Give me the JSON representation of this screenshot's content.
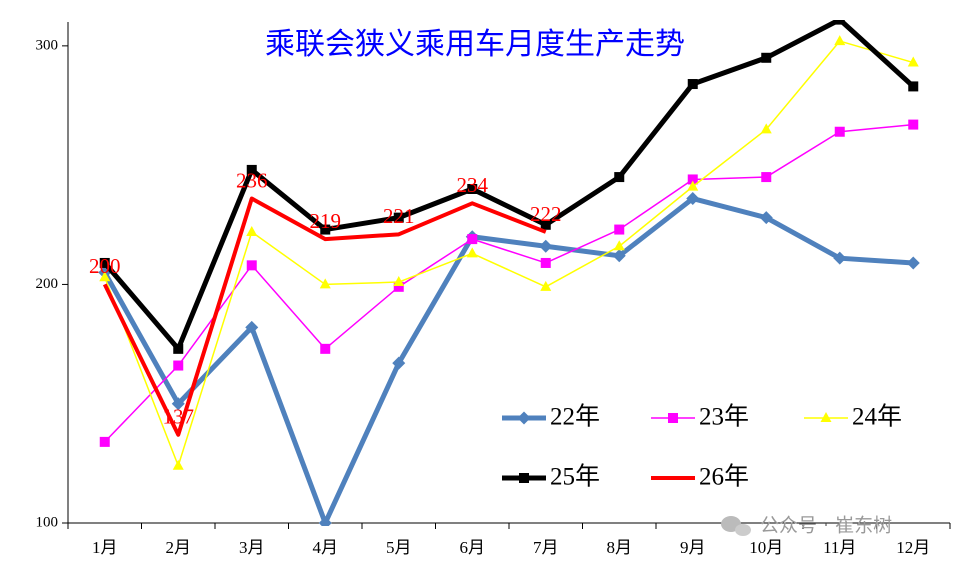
{
  "chart_data": {
    "type": "line",
    "title": "乘联会狭义乘用车月度生产走势",
    "categories": [
      "1月",
      "2月",
      "3月",
      "4月",
      "5月",
      "6月",
      "7月",
      "8月",
      "9月",
      "10月",
      "11月",
      "12月"
    ],
    "ylim": [
      100,
      310
    ],
    "yticks": [
      100,
      200,
      300
    ],
    "series": [
      {
        "name": "22年",
        "color": "#4f81bd",
        "width": 5,
        "marker": "diamond",
        "values": [
          205,
          150,
          182,
          100,
          167,
          220,
          216,
          212,
          236,
          228,
          211,
          209
        ]
      },
      {
        "name": "23年",
        "color": "#ff00ff",
        "width": 1.5,
        "marker": "square",
        "values": [
          134,
          166,
          208,
          173,
          199,
          219,
          209,
          223,
          244,
          245,
          264,
          267
        ]
      },
      {
        "name": "24年",
        "color": "#ffff00",
        "width": 1.5,
        "marker": "triangle",
        "values": [
          203,
          124,
          222,
          200,
          201,
          213,
          199,
          216,
          241,
          265,
          302,
          293
        ]
      },
      {
        "name": "25年",
        "color": "#000000",
        "width": 5,
        "marker": "square",
        "values": [
          209,
          173,
          248,
          223,
          228,
          240,
          225,
          245,
          284,
          295,
          311,
          283
        ]
      },
      {
        "name": "26年",
        "color": "#ff0000",
        "width": 4,
        "marker": "none",
        "labels": true,
        "values": [
          200,
          137,
          236,
          219,
          221,
          234,
          222,
          null,
          null,
          null,
          null,
          null
        ]
      }
    ],
    "watermark": "公众号 · 崔东树"
  }
}
